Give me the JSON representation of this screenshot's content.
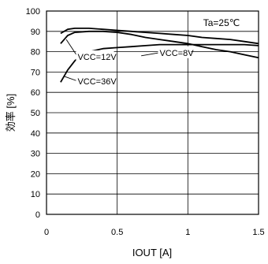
{
  "chart_data": {
    "type": "line",
    "xlabel": "IOUT [A]",
    "ylabel": "効率 [%]",
    "xlim": [
      0,
      1.5
    ],
    "ylim": [
      0,
      100
    ],
    "x_ticks": [
      "0",
      "0.5",
      "1",
      "1.5"
    ],
    "y_ticks": [
      "0",
      "10",
      "20",
      "30",
      "40",
      "50",
      "60",
      "70",
      "80",
      "90",
      "100"
    ],
    "grid": true,
    "condition": "Ta=25℃",
    "series": [
      {
        "name": "VCC=8V",
        "x": [
          0.1,
          0.15,
          0.2,
          0.3,
          0.4,
          0.5,
          0.6,
          0.7,
          0.8,
          0.9,
          1.0,
          1.1,
          1.2,
          1.3,
          1.4,
          1.5
        ],
        "values": [
          89,
          91,
          91.5,
          91.5,
          91,
          90.5,
          90,
          89.5,
          89,
          88.5,
          88,
          87,
          86.5,
          86,
          85,
          84
        ]
      },
      {
        "name": "VCC=12V",
        "x": [
          0.1,
          0.15,
          0.2,
          0.3,
          0.4,
          0.5,
          0.6,
          0.7,
          0.8,
          0.9,
          1.0,
          1.1,
          1.2,
          1.3,
          1.4,
          1.5
        ],
        "values": [
          84,
          88,
          89.5,
          90,
          90,
          89.5,
          88.5,
          87,
          86,
          85,
          84,
          82.5,
          81,
          80,
          78.5,
          77
        ]
      },
      {
        "name": "VCC=36V",
        "x": [
          0.1,
          0.15,
          0.2,
          0.25,
          0.3,
          0.4,
          0.5,
          0.6,
          0.7,
          0.8,
          0.9,
          1.0,
          1.1,
          1.2,
          1.3,
          1.4,
          1.5
        ],
        "values": [
          65,
          71,
          75.5,
          78.5,
          80,
          81.5,
          82,
          82.5,
          83,
          83.5,
          83.5,
          83.5,
          83.5,
          83.5,
          83.5,
          83.5,
          83
        ]
      }
    ],
    "annotations": [
      {
        "text": "VCC=12V",
        "x": 0.22,
        "y": 76,
        "target_x": 0.14,
        "target_y": 86
      },
      {
        "text": "VCC=8V",
        "x": 0.8,
        "y": 78,
        "target_x": 0.67,
        "target_y": 78
      },
      {
        "text": "VCC=36V",
        "x": 0.22,
        "y": 64,
        "target_x": 0.12,
        "target_y": 68
      }
    ]
  }
}
